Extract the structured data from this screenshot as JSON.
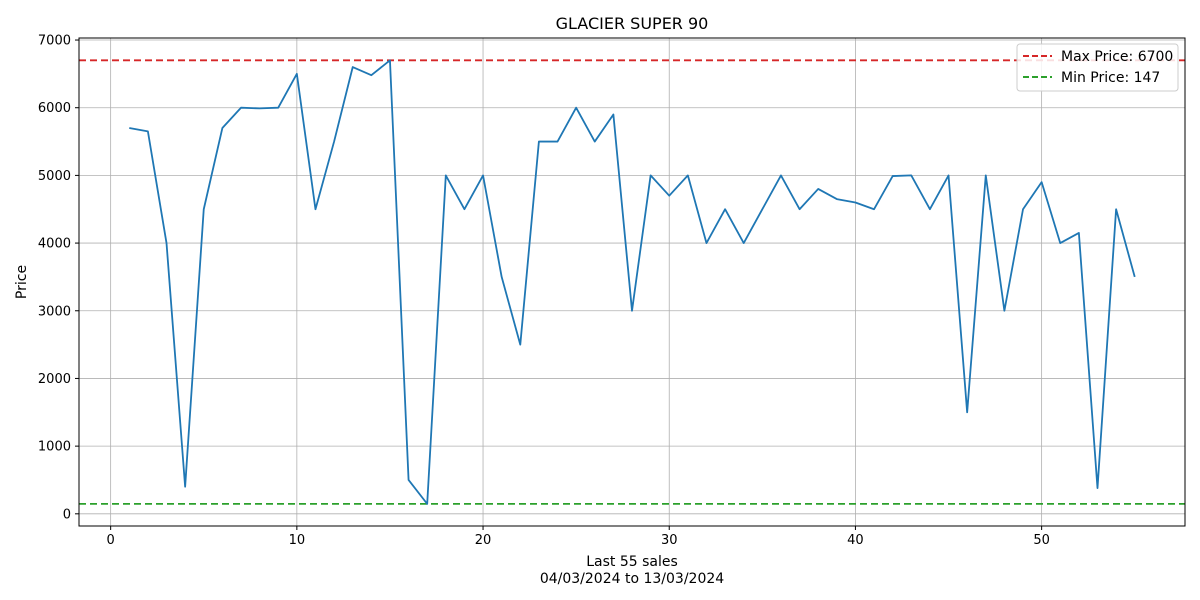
{
  "chart_data": {
    "type": "line",
    "title": "GLACIER SUPER 90",
    "xlabel": "Last 55 sales",
    "xlabel_sub": "04/03/2024 to 13/03/2024",
    "ylabel": "Price",
    "xlim": [
      -1.7,
      57.7
    ],
    "ylim": [
      -180,
      7030
    ],
    "x_ticks": [
      0,
      10,
      20,
      30,
      40,
      50
    ],
    "y_ticks": [
      0,
      1000,
      2000,
      3000,
      4000,
      5000,
      6000,
      7000
    ],
    "grid": true,
    "legend_position": "top-right",
    "series": [
      {
        "color": "#1f77b4",
        "x": [
          1,
          2,
          3,
          4,
          5,
          6,
          7,
          8,
          9,
          10,
          11,
          12,
          13,
          14,
          15,
          16,
          17,
          18,
          19,
          20,
          21,
          22,
          23,
          24,
          25,
          26,
          27,
          28,
          29,
          30,
          31,
          32,
          33,
          34,
          35,
          36,
          37,
          38,
          39,
          40,
          41,
          42,
          43,
          44,
          45,
          46,
          47,
          48,
          49,
          50,
          51,
          52,
          53,
          54,
          55
        ],
        "values": [
          5700,
          5650,
          4000,
          400,
          4500,
          5700,
          6000,
          5990,
          6000,
          6500,
          4500,
          5500,
          6600,
          6480,
          6700,
          500,
          147,
          5000,
          4500,
          5000,
          3500,
          2500,
          5500,
          5500,
          6000,
          5500,
          5900,
          3000,
          5000,
          4700,
          5000,
          4000,
          4500,
          4000,
          4500,
          5000,
          4500,
          4800,
          4650,
          4600,
          4500,
          4990,
          5000,
          4500,
          5000,
          1500,
          5000,
          3000,
          4500,
          4900,
          4000,
          4150,
          380,
          4500,
          3500
        ]
      }
    ],
    "reference_lines": [
      {
        "label": "Max Price: 6700",
        "value": 6700,
        "color": "#d62728"
      },
      {
        "label": "Min Price: 147",
        "value": 147,
        "color": "#2ca02c"
      }
    ]
  }
}
